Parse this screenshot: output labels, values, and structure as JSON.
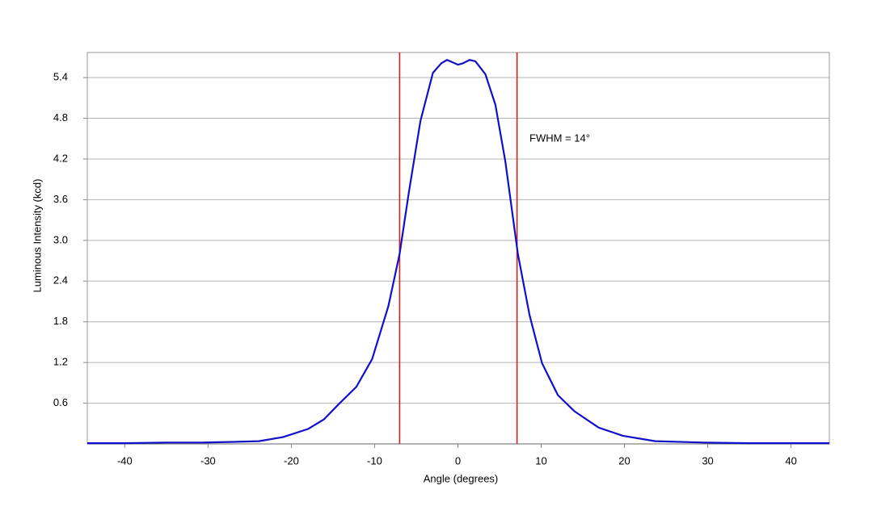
{
  "chart_data": {
    "type": "line",
    "x_label": "Angle (degrees)",
    "y_label": "Luminous Intensity (kcd)",
    "annotation": "FWHM = 14°",
    "x": [
      -44.5,
      -40,
      -35,
      -30.7,
      -27,
      -23.9,
      -21,
      -18,
      -16.1,
      -14.2,
      -12.2,
      -10.3,
      -8.35,
      -7,
      -5.9,
      -4.5,
      -3,
      -2,
      -1.3,
      0,
      0.6,
      1.4,
      2.1,
      3.3,
      4.5,
      5.7,
      7.2,
      8.6,
      10.1,
      12,
      14,
      16.9,
      19.8,
      23.7,
      29.5,
      35,
      40,
      44.6
    ],
    "values": [
      0.01,
      0.01,
      0.02,
      0.02,
      0.03,
      0.04,
      0.1,
      0.22,
      0.36,
      0.6,
      0.84,
      1.25,
      2.03,
      2.8,
      3.7,
      4.76,
      5.47,
      5.61,
      5.66,
      5.59,
      5.61,
      5.66,
      5.64,
      5.45,
      5.0,
      4.16,
      2.8,
      1.9,
      1.19,
      0.72,
      0.48,
      0.24,
      0.12,
      0.04,
      0.02,
      0.01,
      0.01,
      0.01
    ],
    "color": "#1010c8",
    "vlines": [
      -7,
      7.1
    ],
    "vline_color": "#d42020",
    "xlim": [
      -44.5,
      44.6
    ],
    "ylim": [
      0,
      5.77
    ],
    "xticks": [
      -40,
      -30,
      -20,
      -10,
      0,
      10,
      20,
      30,
      40
    ],
    "yticks": [
      0.6,
      1.2,
      1.8,
      2.4,
      {
        "value": 3,
        "label": "3.0"
      },
      3.6,
      4.2,
      4.8,
      5.4
    ],
    "grid": true
  }
}
